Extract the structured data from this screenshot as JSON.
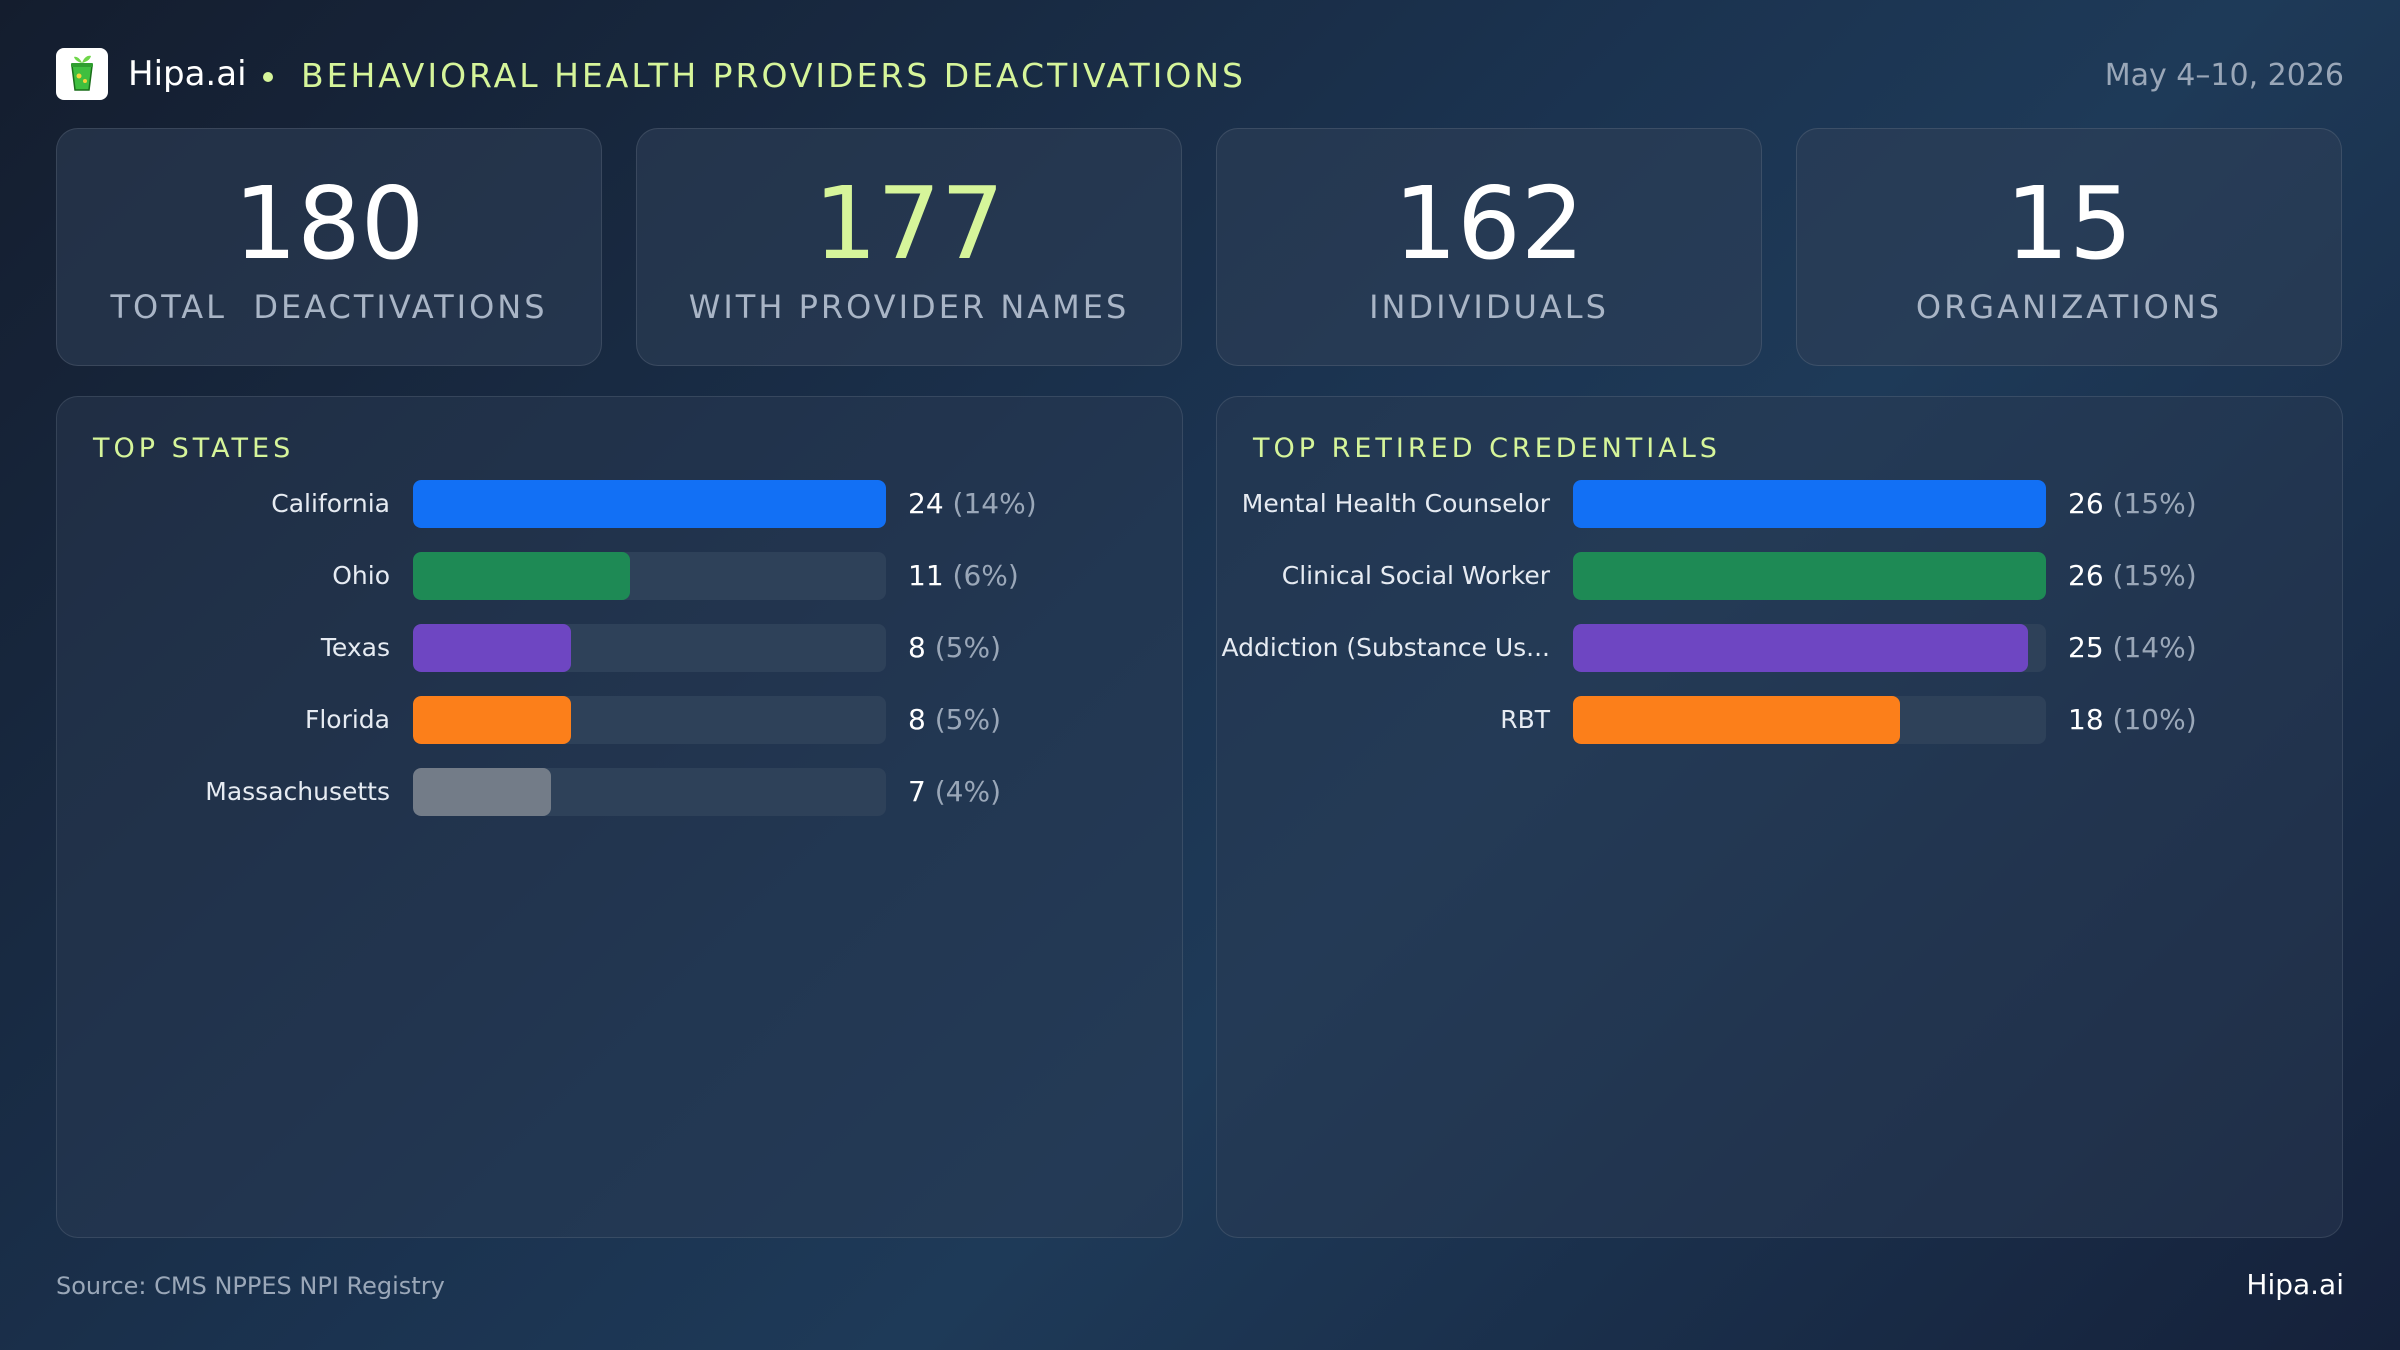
{
  "header": {
    "brand": "Hipa.ai",
    "title": "BEHAVIORAL HEALTH PROVIDERS DEACTIVATIONS",
    "date": "May 4–10, 2026",
    "logo_icon": "cup-plant-icon"
  },
  "stats": [
    {
      "value": "180",
      "label": "TOTAL  DEACTIVATIONS",
      "accent": false
    },
    {
      "value": "177",
      "label": "WITH PROVIDER NAMES",
      "accent": true
    },
    {
      "value": "162",
      "label": "INDIVIDUALS",
      "accent": false
    },
    {
      "value": "15",
      "label": "ORGANIZATIONS",
      "accent": false
    }
  ],
  "colors": {
    "accent": "#d6f59a",
    "blue": "#1270f5",
    "green": "#1e8a55",
    "purple": "#6e46c2",
    "orange": "#fc7f1a",
    "gray": "#737c88",
    "track": "#2e4159"
  },
  "chart_data": [
    {
      "type": "bar",
      "orientation": "horizontal",
      "title": "TOP STATES",
      "categories": [
        "California",
        "Ohio",
        "Texas",
        "Florida",
        "Massachusetts"
      ],
      "values": [
        24,
        11,
        8,
        8,
        7
      ],
      "percent_labels": [
        "(14%)",
        "(6%)",
        "(5%)",
        "(5%)",
        "(4%)"
      ],
      "colors": [
        "#1270f5",
        "#1e8a55",
        "#6e46c2",
        "#fc7f1a",
        "#737c88"
      ],
      "xlim": [
        0,
        24
      ]
    },
    {
      "type": "bar",
      "orientation": "horizontal",
      "title": "TOP RETIRED CREDENTIALS",
      "categories": [
        "Mental Health Counselor",
        "Clinical Social Worker",
        "Addiction (Substance Us...",
        "RBT"
      ],
      "values": [
        26,
        26,
        25,
        18
      ],
      "percent_labels": [
        "(15%)",
        "(15%)",
        "(14%)",
        "(10%)"
      ],
      "colors": [
        "#1270f5",
        "#1e8a55",
        "#6e46c2",
        "#fc7f1a"
      ],
      "xlim": [
        0,
        26
      ]
    }
  ],
  "footer": {
    "source": "Source: CMS NPPES NPI Registry",
    "brand": "Hipa.ai"
  }
}
